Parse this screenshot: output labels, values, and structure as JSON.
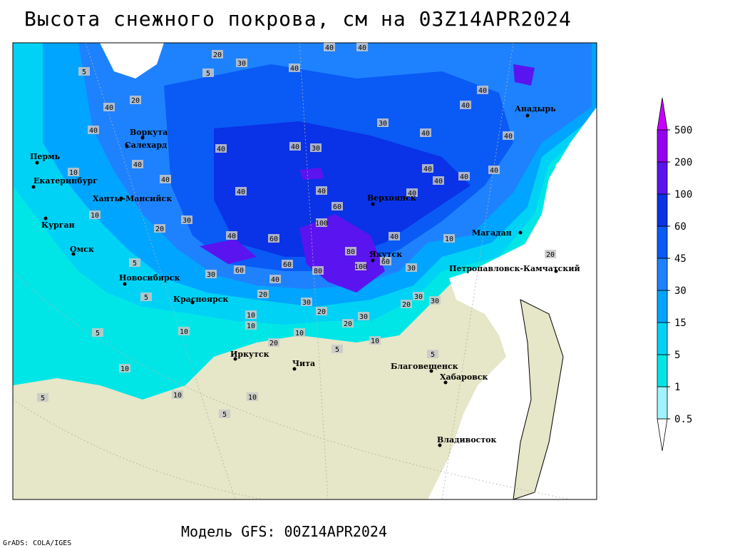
{
  "title": "Высота снежного покрова, см на 03Z14APR2024",
  "subtitle": "Модель GFS: 00Z14APR2024",
  "credit": "GrADS: COLA/IGES",
  "colorbar": {
    "levels": [
      0.5,
      1,
      5,
      15,
      30,
      45,
      60,
      100,
      200,
      500
    ],
    "colors": [
      "#ffffff",
      "#9ff5ff",
      "#00e6e6",
      "#00d2f5",
      "#00a5ff",
      "#1e82ff",
      "#0a5af5",
      "#0a32e6",
      "#5a14f0",
      "#9600f0",
      "#c800ff"
    ]
  },
  "cities": [
    "Пермь",
    "Екатеринбург",
    "Курган",
    "Омск",
    "Ханты-Мансийск",
    "Воркута",
    "Салехард",
    "Новосибирск",
    "Красноярск",
    "Иркутск",
    "Чита",
    "Верхоянск",
    "Якутск",
    "Магадан",
    "Анадырь",
    "Петропавловск-Камчатский",
    "Благовещенск",
    "Хабаровск",
    "Владивосток"
  ],
  "contour_labels": [
    40,
    40,
    40,
    30,
    20,
    5,
    5,
    20,
    40,
    40,
    40,
    30,
    40,
    40,
    40,
    40,
    40,
    60,
    100,
    40,
    60,
    40,
    80,
    100,
    60,
    30,
    40,
    40,
    40,
    40,
    40,
    40,
    40,
    40,
    40,
    30,
    20,
    10,
    5,
    30,
    60,
    40,
    60,
    80,
    20,
    30,
    20,
    20,
    30,
    20,
    30,
    30,
    10,
    10,
    10,
    20,
    5,
    10,
    5,
    10,
    5,
    5,
    10,
    10,
    10,
    5,
    5,
    20,
    10,
    30,
    10
  ]
}
